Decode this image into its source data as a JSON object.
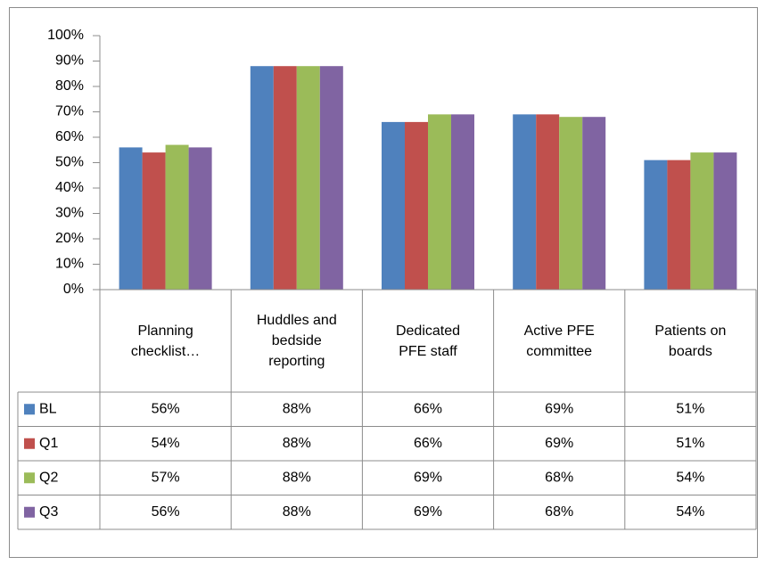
{
  "chart_data": {
    "type": "bar",
    "categories": [
      "Planning checklist…",
      "Huddles and bedside reporting",
      "Dedicated PFE staff",
      "Active PFE committee",
      "Patients on boards"
    ],
    "series": [
      {
        "name": "BL",
        "color": "#4f81bd",
        "values": [
          56,
          88,
          66,
          69,
          51
        ],
        "value_labels": [
          "56%",
          "88%",
          "66%",
          "69%",
          "51%"
        ]
      },
      {
        "name": "Q1",
        "color": "#c0504d",
        "values": [
          54,
          88,
          66,
          69,
          51
        ],
        "value_labels": [
          "54%",
          "88%",
          "66%",
          "69%",
          "51%"
        ]
      },
      {
        "name": "Q2",
        "color": "#9bbb59",
        "values": [
          57,
          88,
          69,
          68,
          54
        ],
        "value_labels": [
          "57%",
          "88%",
          "69%",
          "68%",
          "54%"
        ]
      },
      {
        "name": "Q3",
        "color": "#8064a2",
        "values": [
          56,
          88,
          69,
          68,
          54
        ],
        "value_labels": [
          "56%",
          "88%",
          "69%",
          "68%",
          "54%"
        ]
      }
    ],
    "ylim": [
      0,
      100
    ],
    "yticks": [
      {
        "value": 0,
        "label": "0%"
      },
      {
        "value": 10,
        "label": "10%"
      },
      {
        "value": 20,
        "label": "20%"
      },
      {
        "value": 30,
        "label": "30%"
      },
      {
        "value": 40,
        "label": "40%"
      },
      {
        "value": 50,
        "label": "50%"
      },
      {
        "value": 60,
        "label": "60%"
      },
      {
        "value": 70,
        "label": "70%"
      },
      {
        "value": 80,
        "label": "80%"
      },
      {
        "value": 90,
        "label": "90%"
      },
      {
        "value": 100,
        "label": "100%"
      }
    ]
  }
}
